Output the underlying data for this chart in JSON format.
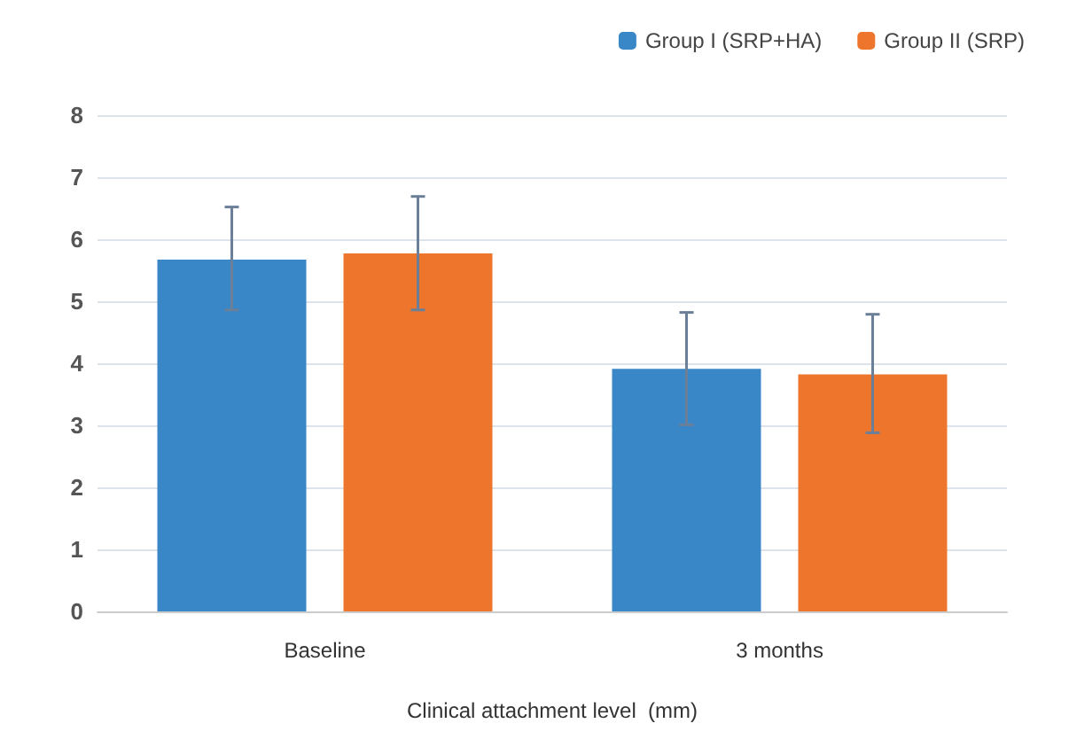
{
  "chart_data": {
    "type": "bar",
    "xlabel": "Clinical attachment level  (mm)",
    "categories": [
      "Baseline",
      "3 months"
    ],
    "series": [
      {
        "name": "Group I (SRP+HA)",
        "color": "#3a87c8",
        "values": [
          5.67,
          3.91
        ],
        "errors": [
          [
            4.86,
            6.52
          ],
          [
            3.01,
            4.82
          ]
        ]
      },
      {
        "name": "Group II (SRP)",
        "color": "#ee762c",
        "values": [
          5.77,
          3.82
        ],
        "errors": [
          [
            4.86,
            6.69
          ],
          [
            2.88,
            4.79
          ]
        ]
      }
    ],
    "ylim": [
      0,
      8
    ],
    "yticks": [
      0,
      1,
      2,
      3,
      4,
      5,
      6,
      7,
      8
    ],
    "grid": "y",
    "legend": "top right"
  }
}
